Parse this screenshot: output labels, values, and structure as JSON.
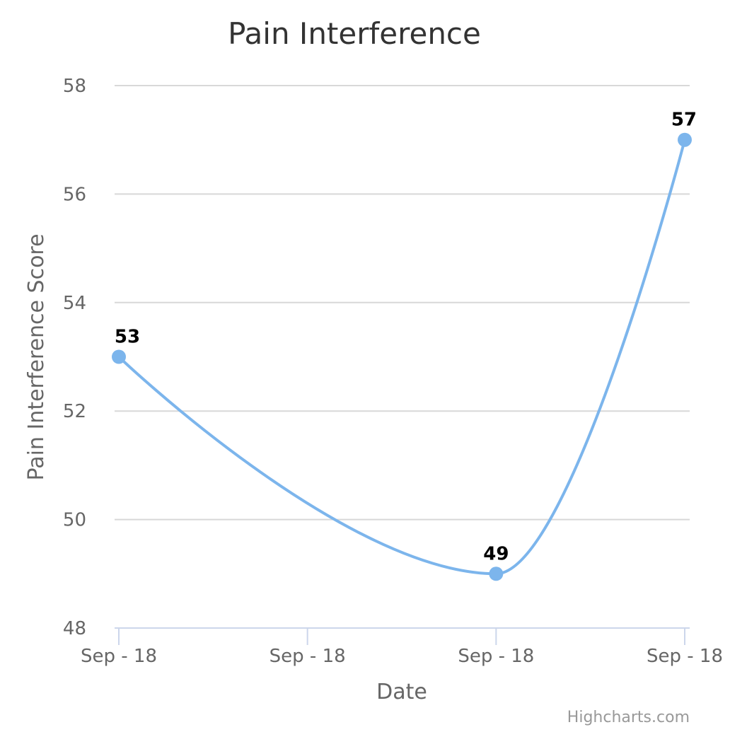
{
  "chart_data": {
    "type": "line",
    "title": "Pain Interference",
    "xlabel": "Date",
    "ylabel": "Pain Interference Score",
    "categories": [
      "Sep - 18",
      "Sep - 18",
      "Sep - 18",
      "Sep - 18"
    ],
    "series": [
      {
        "points": [
          {
            "x": 0,
            "y": 53
          },
          {
            "x": 2,
            "y": 49
          },
          {
            "x": 3,
            "y": 57
          }
        ]
      }
    ],
    "ylim": [
      48,
      58
    ],
    "yticks": [
      48,
      50,
      52,
      54,
      56,
      58
    ],
    "grid": true,
    "legend": "none",
    "spline": true,
    "line_color": "#7cb5ec"
  },
  "credits": "Highcharts.com"
}
